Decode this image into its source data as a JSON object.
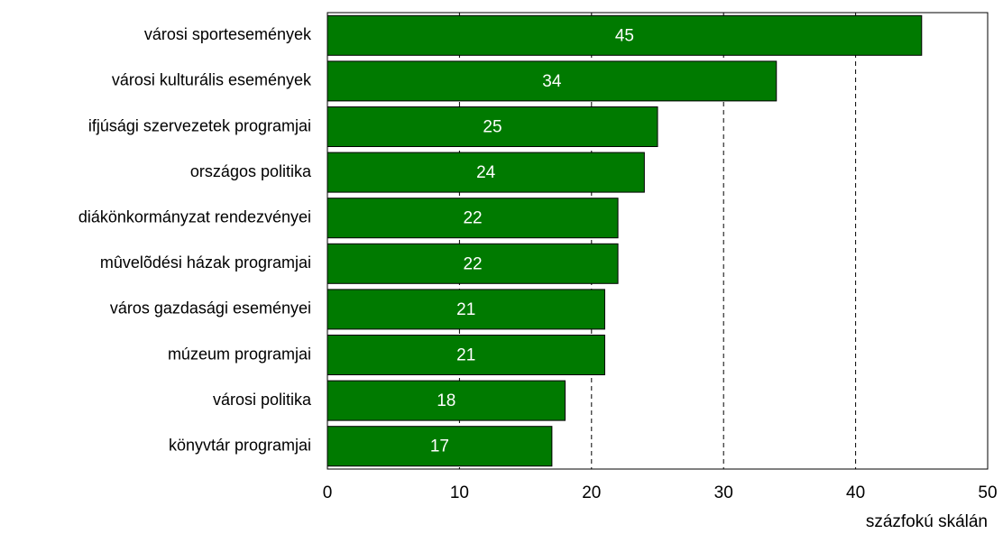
{
  "chart_data": {
    "type": "barh",
    "categories": [
      "városi sportesemények",
      "városi kulturális események",
      "ifjúsági szervezetek programjai",
      "országos politika",
      "diákönkormányzat rendezvényei",
      "mûvelõdési házak programjai",
      "város gazdasági eseményei",
      "múzeum programjai",
      "városi politika",
      "könyvtár programjai"
    ],
    "values": [
      45,
      34,
      25,
      24,
      22,
      22,
      21,
      21,
      18,
      17
    ],
    "color": "#007a00",
    "xlim": [
      0,
      50
    ],
    "xticks": [
      0,
      10,
      20,
      30,
      40,
      50
    ],
    "xlabel": "százfokú skálán",
    "grid": true
  }
}
